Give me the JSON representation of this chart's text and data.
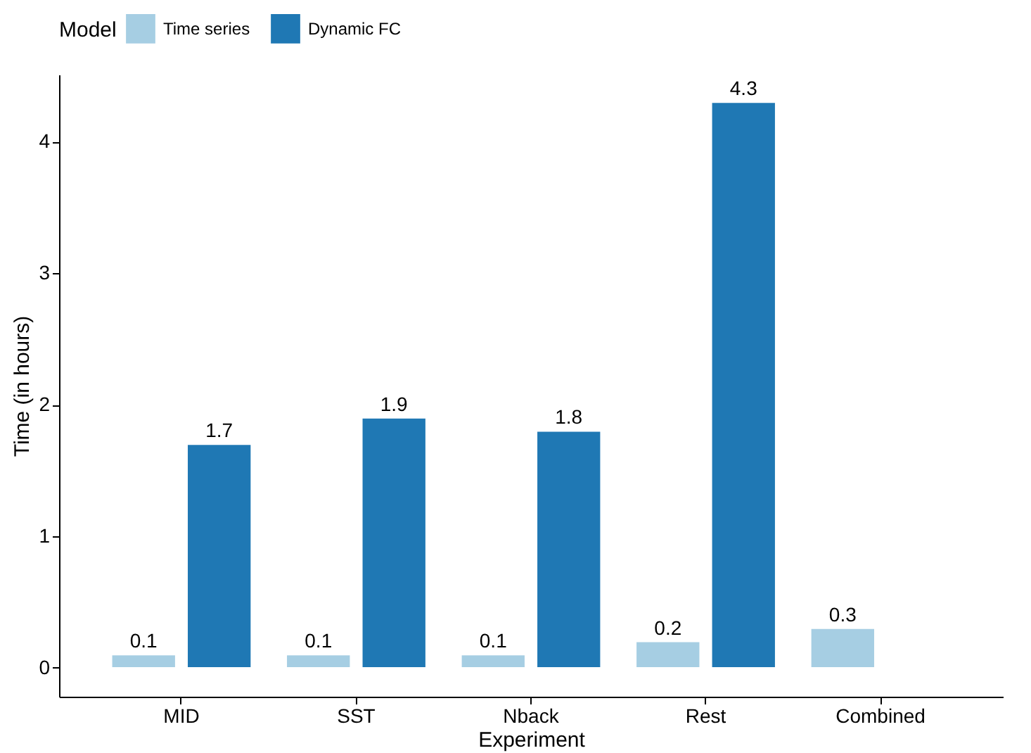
{
  "chart_data": {
    "type": "bar",
    "xlabel": "Experiment",
    "ylabel": "Time (in hours)",
    "legend_title": "Model",
    "categories": [
      "MID",
      "SST",
      "Nback",
      "Rest",
      "Combined"
    ],
    "series": [
      {
        "name": "Time series",
        "color": "#a6cee3",
        "values": [
          0.1,
          0.1,
          0.1,
          0.2,
          0.3
        ]
      },
      {
        "name": "Dynamic FC",
        "color": "#1f78b4",
        "values": [
          1.7,
          1.9,
          1.8,
          4.3,
          null
        ]
      }
    ],
    "ylim": [
      -0.22,
      4.51
    ],
    "yticks": [
      0,
      1,
      2,
      3,
      4
    ],
    "grid": false,
    "legend": "top",
    "data_labels": true
  }
}
